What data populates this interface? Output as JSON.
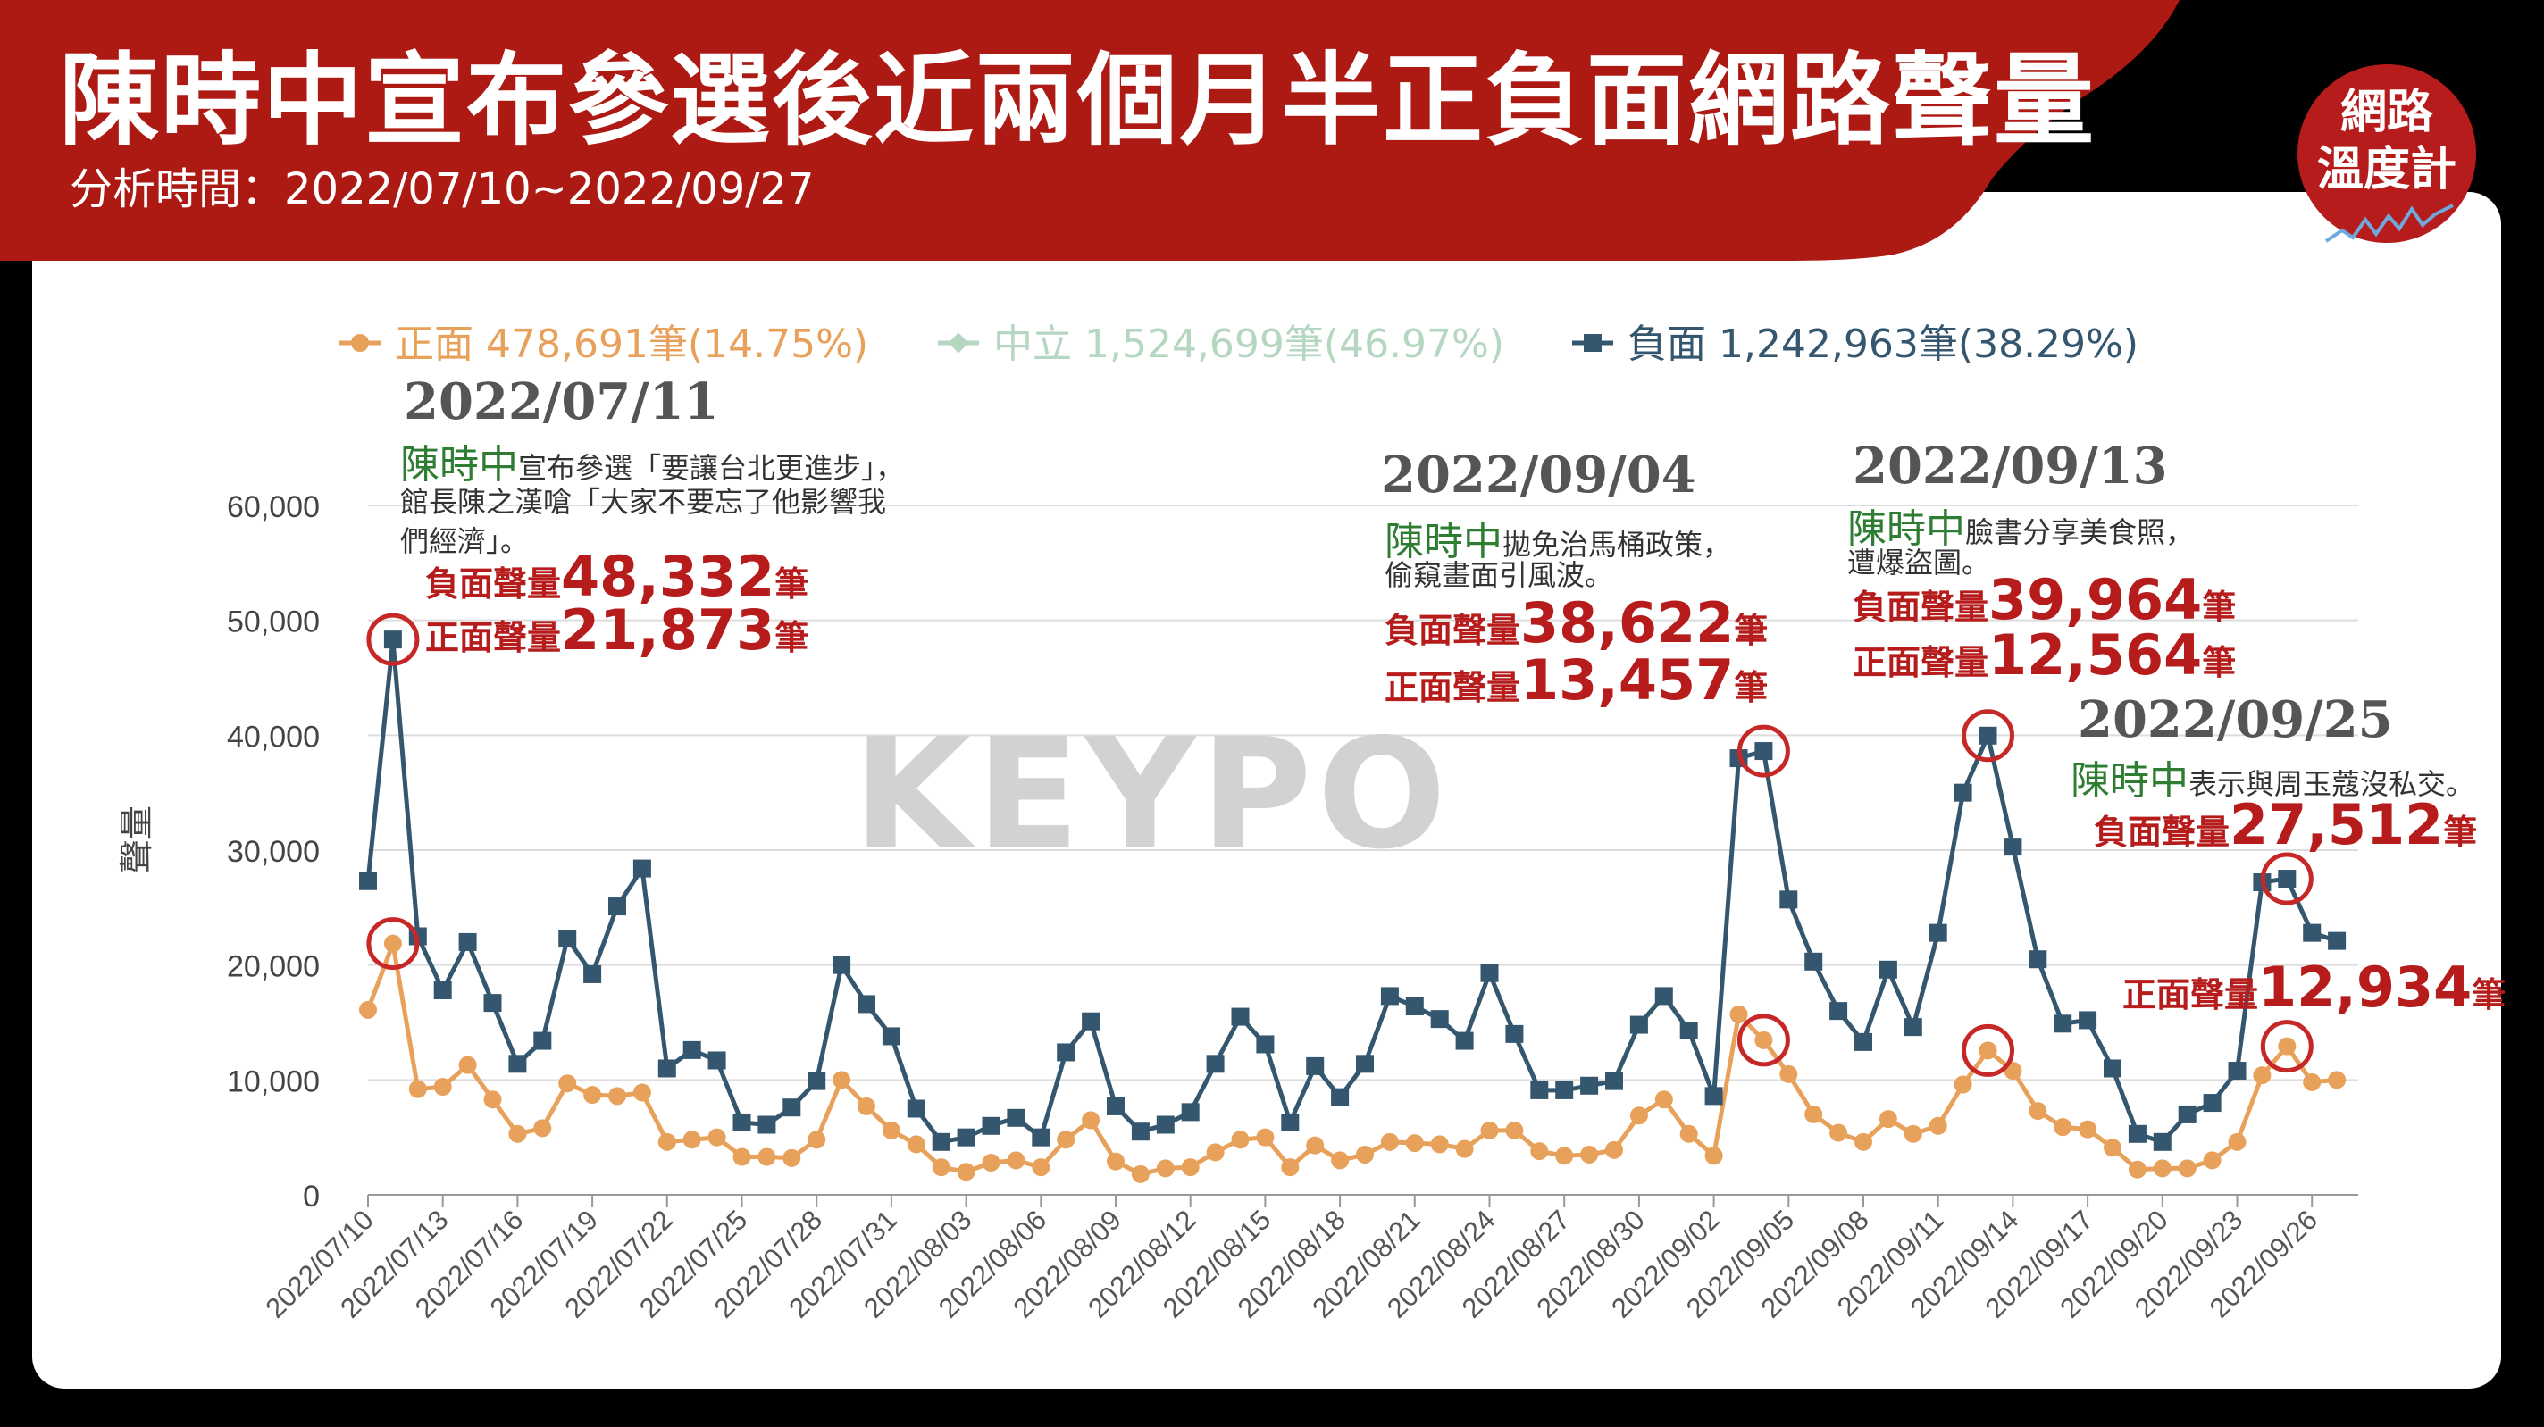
{
  "header": {
    "title": "陳時中宣布參選後近兩個月半正負面網路聲量",
    "subtitle": "分析時間：2022/07/10~2022/09/27",
    "logo_line1": "網路",
    "logo_line2": "溫度計"
  },
  "watermark": "KEYPO",
  "colors": {
    "positive": "#e8a15a",
    "neutral": "#b5d6c0",
    "negative": "#34566e",
    "brand_red": "#b71c1c",
    "highlight": "#c62828",
    "name_green": "#2e7d32"
  },
  "annotations": [
    {
      "date": "2022/07/11",
      "name": "陳時中",
      "text1": "宣布參選「要讓台北更進步」，",
      "text2": "館長陳之漢嗆「大家不要忘了他影響我",
      "text3": "們經濟」。",
      "neg_label": "負面聲量",
      "neg_value": "48,332",
      "pos_label": "正面聲量",
      "pos_value": "21,873",
      "unit": "筆"
    },
    {
      "date": "2022/09/04",
      "name": "陳時中",
      "text1": "拋免治馬桶政策，",
      "text2": "偷窺畫面引風波。",
      "neg_label": "負面聲量",
      "neg_value": "38,622",
      "pos_label": "正面聲量",
      "pos_value": "13,457",
      "unit": "筆"
    },
    {
      "date": "2022/09/13",
      "name": "陳時中",
      "text1": "臉書分享美食照，",
      "text2": "遭爆盜圖。",
      "neg_label": "負面聲量",
      "neg_value": "39,964",
      "pos_label": "正面聲量",
      "pos_value": "12,564",
      "unit": "筆"
    },
    {
      "date": "2022/09/25",
      "name": "陳時中",
      "text1": "表示與周玉蔻沒私交。",
      "neg_label": "負面聲量",
      "neg_value": "27,512",
      "pos_label": "正面聲量",
      "pos_value": "12,934",
      "unit": "筆"
    }
  ],
  "chart_data": {
    "type": "line",
    "ylabel": "聲量",
    "ylim": [
      0,
      60000
    ],
    "yticks": [
      0,
      10000,
      20000,
      30000,
      40000,
      50000,
      60000
    ],
    "ytick_labels": [
      "0",
      "10,000",
      "20,000",
      "30,000",
      "40,000",
      "50,000",
      "60,000"
    ],
    "x_start": "2022-07-10",
    "x_tick_labels": [
      "2022/07/10",
      "2022/07/13",
      "2022/07/16",
      "2022/07/19",
      "2022/07/22",
      "2022/07/25",
      "2022/07/28",
      "2022/07/31",
      "2022/08/03",
      "2022/08/06",
      "2022/08/09",
      "2022/08/12",
      "2022/08/15",
      "2022/08/18",
      "2022/08/21",
      "2022/08/24",
      "2022/08/27",
      "2022/08/30",
      "2022/09/02",
      "2022/09/05",
      "2022/09/08",
      "2022/09/11",
      "2022/09/14",
      "2022/09/17",
      "2022/09/20",
      "2022/09/23",
      "2022/09/26"
    ],
    "grid": true,
    "legend_position": "top",
    "highlight_points": [
      {
        "series": "負面",
        "date": "2022-07-11"
      },
      {
        "series": "正面",
        "date": "2022-07-11"
      },
      {
        "series": "負面",
        "date": "2022-09-04"
      },
      {
        "series": "正面",
        "date": "2022-09-04"
      },
      {
        "series": "負面",
        "date": "2022-09-13"
      },
      {
        "series": "正面",
        "date": "2022-09-13"
      },
      {
        "series": "負面",
        "date": "2022-09-25"
      },
      {
        "series": "正面",
        "date": "2022-09-25"
      }
    ],
    "series": [
      {
        "name": "正面",
        "legend": "正面 478,691筆(14.75%)",
        "color": "#e8a15a",
        "marker": "circle",
        "values": [
          16100,
          21873,
          9200,
          9400,
          11300,
          8300,
          5300,
          5800,
          9700,
          8700,
          8600,
          8900,
          4600,
          4800,
          5000,
          3300,
          3300,
          3200,
          4800,
          10000,
          7700,
          5600,
          4400,
          2400,
          2000,
          2800,
          3000,
          2400,
          4800,
          6500,
          2900,
          1800,
          2300,
          2400,
          3700,
          4800,
          5000,
          2400,
          4300,
          3000,
          3500,
          4600,
          4500,
          4400,
          4000,
          5600,
          5600,
          3800,
          3400,
          3500,
          3900,
          6900,
          8300,
          5300,
          3400,
          15700,
          13457,
          10500,
          7000,
          5400,
          4600,
          6600,
          5300,
          6000,
          9600,
          12564,
          10800,
          7300,
          5900,
          5700,
          4100,
          2200,
          2300,
          2300,
          3000,
          4600,
          10400,
          12934,
          9800,
          10000
        ]
      },
      {
        "name": "中立",
        "legend": "中立 1,524,699筆(46.97%)",
        "color": "#b5d6c0",
        "marker": "diamond",
        "hidden": true,
        "values": []
      },
      {
        "name": "負面",
        "legend": "負面 1,242,963筆(38.29%)",
        "color": "#34566e",
        "marker": "square",
        "values": [
          27300,
          48332,
          22500,
          17800,
          22000,
          16700,
          11400,
          13400,
          22300,
          19200,
          25100,
          28400,
          11000,
          12600,
          11700,
          6300,
          6100,
          7600,
          9900,
          20000,
          16600,
          13800,
          7500,
          4600,
          5000,
          6000,
          6700,
          5000,
          12400,
          15100,
          7700,
          5500,
          6100,
          7200,
          11400,
          15500,
          13100,
          6300,
          11200,
          8500,
          11400,
          17300,
          16400,
          15300,
          13400,
          19300,
          14000,
          9100,
          9100,
          9500,
          9900,
          14800,
          17300,
          14300,
          8600,
          38000,
          38622,
          25700,
          20300,
          16000,
          13300,
          19600,
          14600,
          22800,
          35000,
          39964,
          30300,
          20500,
          14900,
          15200,
          11000,
          5300,
          4600,
          7000,
          8000,
          10800,
          27200,
          27512,
          22800,
          22100
        ]
      }
    ]
  }
}
